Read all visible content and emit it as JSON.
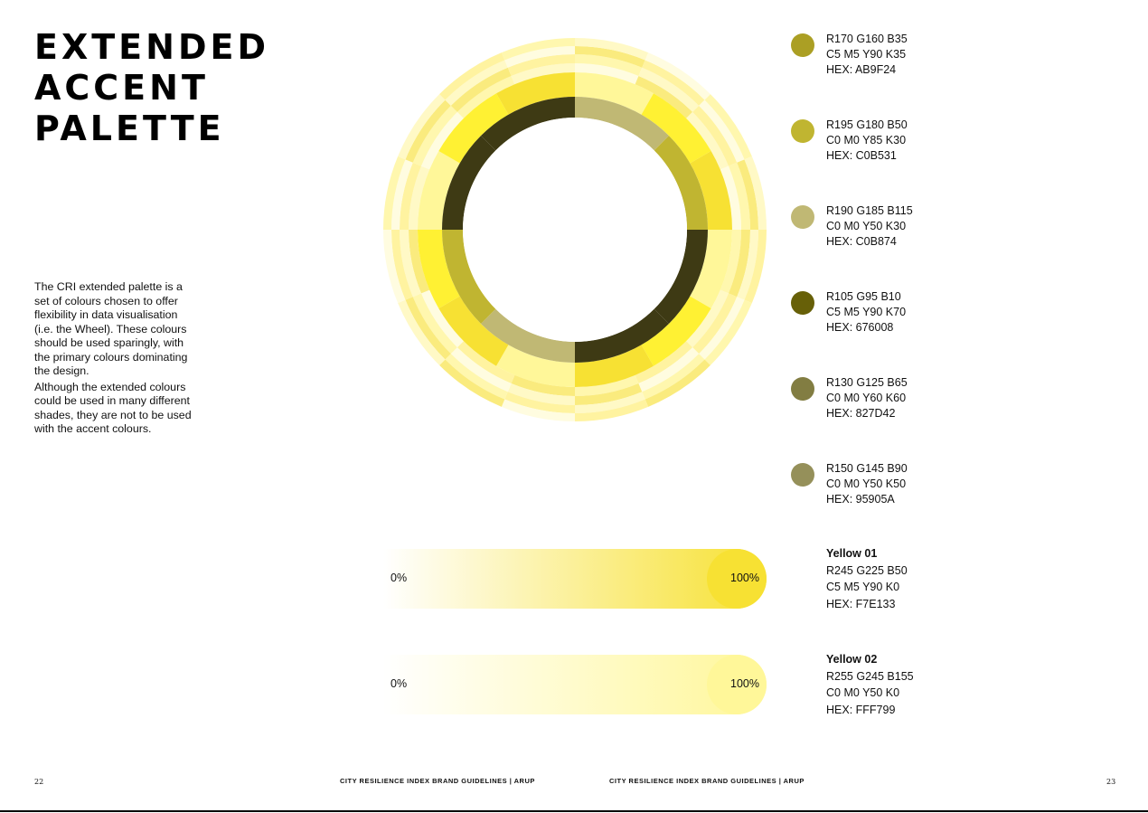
{
  "title": {
    "line1": "EXTENDED",
    "line2": "ACCENT",
    "line3": "PALETTE"
  },
  "intro": {
    "p1": "The CRI extended palette is a set of colours chosen to offer flexibility in data visualisation (i.e. the Wheel). These colours should be used sparingly, with the primary colours dominating the design.",
    "p2": "Although the extended colours could be used in many different shades, they are not to be used with the accent colours."
  },
  "swatches": [
    {
      "color": "#AB9F24",
      "rgb": "R170 G160 B35",
      "cmyk": "C5 M5 Y90 K35",
      "hex": "HEX: AB9F24"
    },
    {
      "color": "#C0B531",
      "rgb": "R195 G180 B50",
      "cmyk": "C0 M0 Y85 K30",
      "hex": "HEX: C0B531"
    },
    {
      "color": "#C0B874",
      "rgb": "R190 G185 B115",
      "cmyk": "C0 M0 Y50 K30",
      "hex": "HEX: C0B874"
    },
    {
      "color": "#676008",
      "rgb": "R105 G95 B10",
      "cmyk": "C5 M5 Y90 K70",
      "hex": "HEX: 676008"
    },
    {
      "color": "#827D42",
      "rgb": "R130 G125 B65",
      "cmyk": "C0 M0 Y60 K60",
      "hex": "HEX: 827D42"
    },
    {
      "color": "#95905A",
      "rgb": "R150 G145 B90",
      "cmyk": "C0 M0 Y50 K50",
      "hex": "HEX: 95905A"
    }
  ],
  "gradients": [
    {
      "name": "Yellow 01",
      "color": "#F7E133",
      "rgb": "R245 G225 B50",
      "cmyk": "C5 M5 Y90 K0",
      "hex": "HEX: F7E133",
      "label_start": "0%",
      "label_end": "100%"
    },
    {
      "name": "Yellow 02",
      "color": "#FFF799",
      "rgb": "R255 G245 B155",
      "cmyk": "C0 M0 Y50 K0",
      "hex": "HEX: FFF799",
      "label_start": "0%",
      "label_end": "100%"
    }
  ],
  "footer": {
    "page_left": "22",
    "label_left": "CITY RESILIENCE INDEX BRAND GUIDELINES  |  ARUP",
    "label_right": "CITY RESILIENCE INDEX BRAND GUIDELINES  |  ARUP",
    "page_right": "23"
  },
  "wheel": {
    "inner_ring": [
      "#C0B874",
      "#C0B531",
      "#3E3A14",
      "#3E3A14",
      "#C0B874",
      "#C0B531",
      "#3E3A14",
      "#3E3A14"
    ],
    "middle_ring": [
      "#FFF799",
      "#FFF133",
      "#F7E133",
      "#FFF799",
      "#FFF133",
      "#F7E133",
      "#FFF799",
      "#F7E133",
      "#FFF133",
      "#FFF799",
      "#FFF133",
      "#F7E133"
    ],
    "outer_palette": [
      "#FFFCE0",
      "#FFF9C6",
      "#FFF7AE",
      "#FFF3A0",
      "#FAEB7E"
    ]
  }
}
